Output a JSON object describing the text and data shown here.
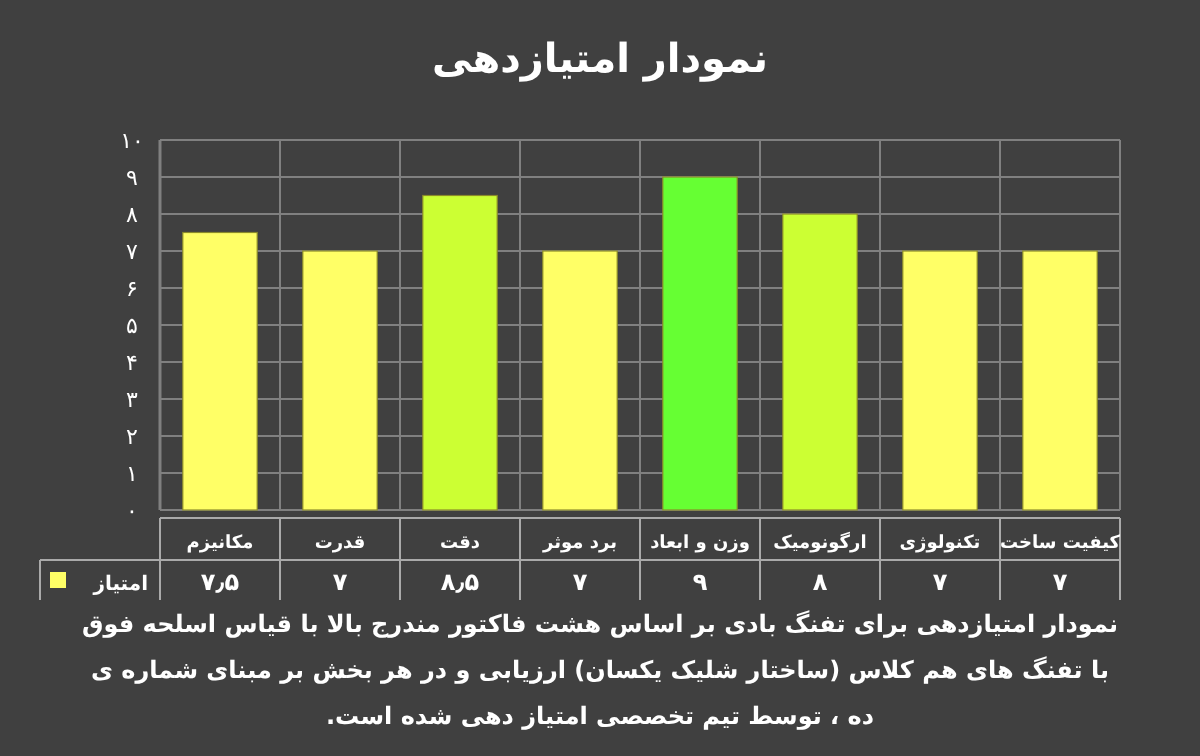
{
  "chart_data": {
    "type": "bar",
    "title": "نمودار امتیازدهی",
    "categories": [
      "مکانیزم",
      "قدرت",
      "دقت",
      "برد موثر",
      "وزن و ابعاد",
      "ارگونومیک",
      "تکنولوژی",
      "کیفیت ساخت"
    ],
    "series": [
      {
        "name": "امتیاز",
        "color": "#ffff66",
        "colors": [
          "#ffff66",
          "#ffff66",
          "#ccff33",
          "#ffff66",
          "#66ff33",
          "#ccff33",
          "#ffff66",
          "#ffff66"
        ],
        "values": [
          7.5,
          7,
          8.5,
          7,
          9,
          8,
          7,
          7
        ],
        "value_labels": [
          "۷٫۵",
          "۷",
          "۸٫۵",
          "۷",
          "۹",
          "۸",
          "۷",
          "۷"
        ]
      }
    ],
    "ylim": [
      0,
      10
    ],
    "yticks": [
      {
        "value": 0,
        "label": "۰"
      },
      {
        "value": 1,
        "label": "۱"
      },
      {
        "value": 2,
        "label": "۲"
      },
      {
        "value": 3,
        "label": "۳"
      },
      {
        "value": 4,
        "label": "۴"
      },
      {
        "value": 5,
        "label": "۵"
      },
      {
        "value": 6,
        "label": "۶"
      },
      {
        "value": 7,
        "label": "۷"
      },
      {
        "value": 8,
        "label": "۸"
      },
      {
        "value": 9,
        "label": "۹"
      },
      {
        "value": 10,
        "label": "۱۰"
      }
    ],
    "grid": true,
    "legend": "bottom left",
    "annotations": [
      "نمودار امتیازدهی برای تفنگ بادی بر اساس هشت فاکتور مندرج بالا با قیاس اسلحه فوق با تفنگ های هم کلاس (ساختار شلیک یکسان) ارزیابی و در هر بخش بر مبنای شماره ی ده ، توسط تیم تخصصی امتیاز دهی شده است."
    ]
  }
}
